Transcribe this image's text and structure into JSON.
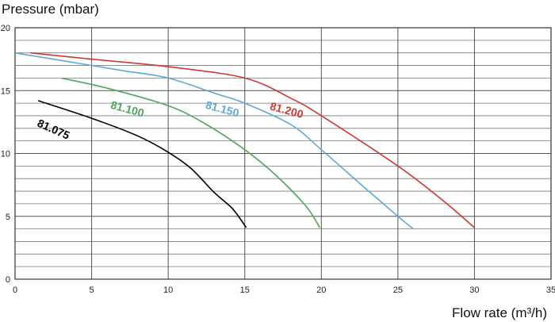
{
  "chart_data": {
    "type": "line",
    "ylabel": "Pressure (mbar)",
    "xlabel": "Flow rate (m³/h)",
    "xlim": [
      0,
      35
    ],
    "ylim": [
      0,
      20
    ],
    "x_ticks": [
      0,
      5,
      10,
      15,
      20,
      25,
      30,
      35
    ],
    "y_ticks": [
      0,
      5,
      10,
      15,
      20
    ],
    "x_tick_labels": [
      "0",
      "5",
      "10",
      "15",
      "20",
      "25",
      "30",
      "35"
    ],
    "y_tick_labels": [
      "0",
      "5",
      "10",
      "15",
      "20"
    ],
    "grid": true,
    "legend": "none",
    "series": [
      {
        "name": "81.075",
        "color": "#000000",
        "points": [
          [
            1.5,
            14.2
          ],
          [
            5,
            12.8
          ],
          [
            8,
            11.4
          ],
          [
            10,
            10.1
          ],
          [
            11.5,
            8.8
          ],
          [
            13,
            6.9
          ],
          [
            14.2,
            5.6
          ],
          [
            15.1,
            4.1
          ]
        ]
      },
      {
        "name": "81.100",
        "color": "#4fa65a",
        "points": [
          [
            3,
            16.0
          ],
          [
            6,
            15.2
          ],
          [
            10,
            13.8
          ],
          [
            12.5,
            12.3
          ],
          [
            15,
            10.3
          ],
          [
            17,
            8.3
          ],
          [
            19,
            5.8
          ],
          [
            19.9,
            4.1
          ]
        ]
      },
      {
        "name": "81.150",
        "color": "#5ea8d8",
        "points": [
          [
            0,
            18.0
          ],
          [
            3,
            17.4
          ],
          [
            7,
            16.6
          ],
          [
            10,
            16.0
          ],
          [
            13,
            14.8
          ],
          [
            15,
            14.0
          ],
          [
            18,
            12.3
          ],
          [
            20,
            10.3
          ],
          [
            23,
            7.1
          ],
          [
            25,
            5.0
          ],
          [
            26,
            4.0
          ]
        ]
      },
      {
        "name": "81.200",
        "color": "#cc3a34",
        "points": [
          [
            1,
            18.0
          ],
          [
            5,
            17.5
          ],
          [
            10,
            16.9
          ],
          [
            15,
            16.0
          ],
          [
            18,
            14.4
          ],
          [
            20,
            13.0
          ],
          [
            25,
            9.0
          ],
          [
            28,
            6.2
          ],
          [
            30,
            4.1
          ]
        ]
      }
    ]
  }
}
